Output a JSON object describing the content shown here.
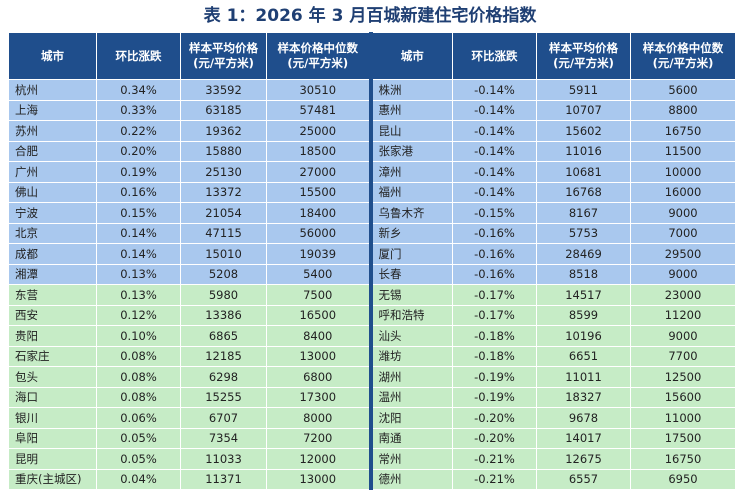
{
  "title": "表 1：2026 年 3 月百城新建住宅价格指数",
  "table": {
    "headers": [
      [
        "城市"
      ],
      [
        "环比涨跌"
      ],
      [
        "样本平均价格",
        "(元/平方米)"
      ],
      [
        "样本价格中位数",
        "(元/平方米)"
      ],
      [
        "城市"
      ],
      [
        "环比涨跌"
      ],
      [
        "样本平均价格",
        "(元/平方米)"
      ],
      [
        "样本价格中位数",
        "(元/平方米)"
      ]
    ],
    "rows": [
      [
        "杭州",
        "0.34%",
        33592,
        30510,
        "株洲",
        "-0.14%",
        5911,
        5600
      ],
      [
        "上海",
        "0.33%",
        63185,
        57481,
        "惠州",
        "-0.14%",
        10707,
        8800
      ],
      [
        "苏州",
        "0.22%",
        19362,
        25000,
        "昆山",
        "-0.14%",
        15602,
        16750
      ],
      [
        "合肥",
        "0.20%",
        15880,
        18500,
        "张家港",
        "-0.14%",
        11016,
        11500
      ],
      [
        "广州",
        "0.19%",
        25130,
        27000,
        "漳州",
        "-0.14%",
        10681,
        10000
      ],
      [
        "佛山",
        "0.16%",
        13372,
        15500,
        "福州",
        "-0.14%",
        16768,
        16000
      ],
      [
        "宁波",
        "0.15%",
        21054,
        18400,
        "乌鲁木齐",
        "-0.15%",
        8167,
        9000
      ],
      [
        "北京",
        "0.14%",
        47115,
        56000,
        "新乡",
        "-0.16%",
        5753,
        7000
      ],
      [
        "成都",
        "0.14%",
        15010,
        19039,
        "厦门",
        "-0.16%",
        28469,
        29500
      ],
      [
        "湘潭",
        "0.13%",
        5208,
        5400,
        "长春",
        "-0.16%",
        8518,
        9000
      ],
      [
        "东营",
        "0.13%",
        5980,
        7500,
        "无锡",
        "-0.17%",
        14517,
        23000
      ],
      [
        "西安",
        "0.12%",
        13386,
        16500,
        "呼和浩特",
        "-0.17%",
        8599,
        11200
      ],
      [
        "贵阳",
        "0.10%",
        6865,
        8400,
        "汕头",
        "-0.18%",
        10196,
        9000
      ],
      [
        "石家庄",
        "0.08%",
        12185,
        13000,
        "潍坊",
        "-0.18%",
        6651,
        7700
      ],
      [
        "包头",
        "0.08%",
        6298,
        6800,
        "湖州",
        "-0.19%",
        11011,
        12500
      ],
      [
        "海口",
        "0.08%",
        15255,
        17300,
        "温州",
        "-0.19%",
        18327,
        15600
      ],
      [
        "银川",
        "0.06%",
        6707,
        8000,
        "沈阳",
        "-0.20%",
        9678,
        11000
      ],
      [
        "阜阳",
        "0.05%",
        7354,
        7200,
        "南通",
        "-0.20%",
        14017,
        17500
      ],
      [
        "昆明",
        "0.05%",
        11033,
        12000,
        "常州",
        "-0.21%",
        12675,
        16750
      ],
      [
        "重庆(主城区)",
        "0.04%",
        11371,
        13000,
        "德州",
        "-0.21%",
        6557,
        6950
      ]
    ]
  }
}
